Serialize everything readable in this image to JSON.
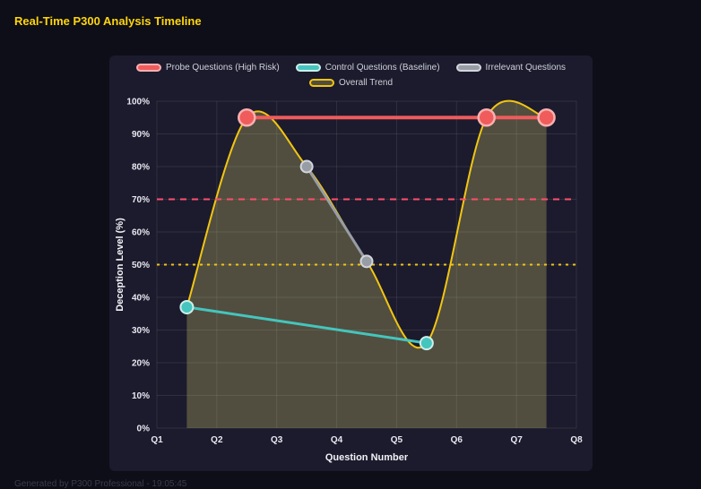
{
  "page": {
    "title": "Real-Time P300 Analysis Timeline",
    "footer": "Generated by P300 Professional - 19:05:45"
  },
  "chart_data": {
    "type": "line",
    "title": "",
    "xlabel": "Question Number",
    "ylabel": "Deception Level (%)",
    "x_ticks": [
      "Q1",
      "Q2",
      "Q3",
      "Q4",
      "Q5",
      "Q6",
      "Q7",
      "Q8"
    ],
    "xlim": [
      1,
      8
    ],
    "ylim": [
      0,
      100
    ],
    "y_tick_step": 10,
    "y_tick_suffix": "%",
    "grid": true,
    "legend_position": "top",
    "colors": {
      "page_bg": "#0e0e19",
      "panel_bg": "#1b1b2d",
      "grid": "rgba(255,255,255,0.09)",
      "tick_text": "#e8e8f2",
      "axis_title": "#f2f2f7",
      "title_text": "#ffd60a",
      "legend_text": "#cfd0da",
      "footer_text": "#3b3b4a"
    },
    "series": [
      {
        "name": "Probe Questions (High Risk)",
        "color": "#f05b5b",
        "point_stroke": "#f8b0b0",
        "line_width": 4,
        "point_radius": 9,
        "x": [
          2.5,
          6.5,
          7.5
        ],
        "values": [
          95,
          95,
          95
        ]
      },
      {
        "name": "Control Questions (Baseline)",
        "color": "#45c5bd",
        "point_stroke": "#cdeeeb",
        "line_width": 3,
        "point_radius": 7,
        "x": [
          1.5,
          5.5
        ],
        "values": [
          37,
          26
        ]
      },
      {
        "name": "Irrelevant Questions",
        "color": "#989ca4",
        "point_stroke": "#d3d6db",
        "line_width": 3,
        "point_radius": 6.5,
        "x": [
          3.5,
          4.5
        ],
        "values": [
          80,
          51
        ]
      },
      {
        "name": "Overall Trend",
        "color": "#f2c511",
        "legend_fill": "rgba(242,230,118,0.25)",
        "line_width": 2,
        "point_radius": 0,
        "smooth": true,
        "fill": true,
        "fill_color": "rgba(242,230,118,0.25)",
        "x": [
          1.5,
          2.5,
          3.5,
          4.5,
          5.5,
          6.5,
          7.5
        ],
        "values": [
          37,
          95,
          80,
          51,
          26,
          95,
          95
        ]
      }
    ],
    "thresholds": [
      {
        "name": "high-risk-threshold",
        "value": 70,
        "color": "#ff4d6d",
        "dash": "7 6",
        "width": 2
      },
      {
        "name": "baseline-threshold",
        "value": 50,
        "color": "#f2c511",
        "dash": "3 5",
        "width": 2
      }
    ]
  }
}
